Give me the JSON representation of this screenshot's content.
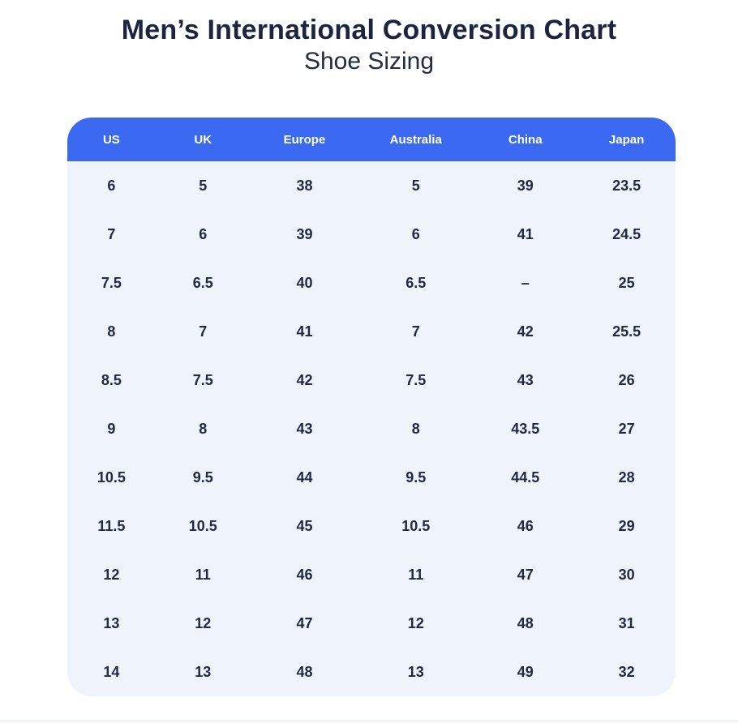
{
  "header": {
    "title": "Men’s International Conversion Chart",
    "subtitle": "Shoe Sizing"
  },
  "colors": {
    "header_bg": "#3b69f1",
    "header_text": "#ffffff",
    "body_bg": "#eff3fb",
    "body_text": "#212944",
    "title_text": "#1d2440"
  },
  "chart_data": {
    "type": "table",
    "title": "Men’s International Conversion Chart",
    "subtitle": "Shoe Sizing",
    "columns": [
      "US",
      "UK",
      "Europe",
      "Australia",
      "China",
      "Japan"
    ],
    "rows": [
      [
        "6",
        "5",
        "38",
        "5",
        "39",
        "23.5"
      ],
      [
        "7",
        "6",
        "39",
        "6",
        "41",
        "24.5"
      ],
      [
        "7.5",
        "6.5",
        "40",
        "6.5",
        "–",
        "25"
      ],
      [
        "8",
        "7",
        "41",
        "7",
        "42",
        "25.5"
      ],
      [
        "8.5",
        "7.5",
        "42",
        "7.5",
        "43",
        "26"
      ],
      [
        "9",
        "8",
        "43",
        "8",
        "43.5",
        "27"
      ],
      [
        "10.5",
        "9.5",
        "44",
        "9.5",
        "44.5",
        "28"
      ],
      [
        "11.5",
        "10.5",
        "45",
        "10.5",
        "46",
        "29"
      ],
      [
        "12",
        "11",
        "46",
        "11",
        "47",
        "30"
      ],
      [
        "13",
        "12",
        "47",
        "12",
        "48",
        "31"
      ],
      [
        "14",
        "13",
        "48",
        "13",
        "49",
        "32"
      ]
    ],
    "column_widths_pct": [
      14.5,
      15.6,
      17.8,
      18.8,
      17.2,
      16.1
    ]
  }
}
